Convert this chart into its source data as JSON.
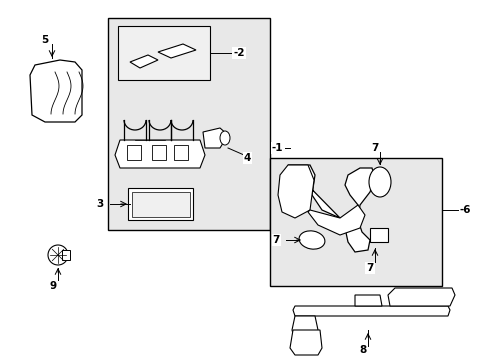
{
  "background_color": "#ffffff",
  "box_fill": "#e8e8e8",
  "part_fill": "#ffffff",
  "line_color": "#000000",
  "figsize": [
    4.89,
    3.6
  ],
  "dpi": 100,
  "xlim": [
    0,
    489
  ],
  "ylim": [
    0,
    360
  ]
}
